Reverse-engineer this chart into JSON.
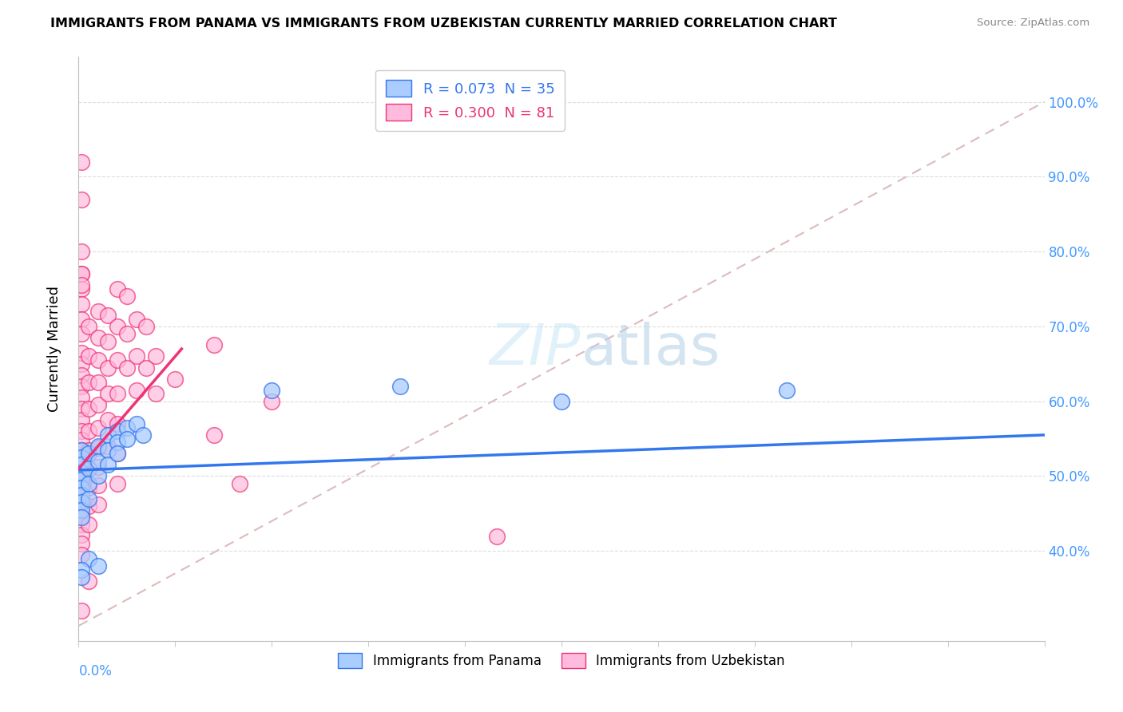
{
  "title": "IMMIGRANTS FROM PANAMA VS IMMIGRANTS FROM UZBEKISTAN CURRENTLY MARRIED CORRELATION CHART",
  "source": "Source: ZipAtlas.com",
  "ylabel": "Currently Married",
  "legend_panama": "R = 0.073  N = 35",
  "legend_uzbekistan": "R = 0.300  N = 81",
  "color_panama": "#aaccff",
  "color_uzbekistan": "#ffbbdd",
  "line_color_panama": "#3377ee",
  "line_color_uzbekistan": "#ee3377",
  "diagonal_color": "#ddbbbb",
  "xmin": 0.0,
  "xmax": 0.3,
  "ymin": 0.28,
  "ymax": 1.06,
  "yticks": [
    0.4,
    0.5,
    0.6,
    0.7,
    0.8,
    0.9,
    1.0
  ],
  "panama_points": [
    [
      0.001,
      0.535
    ],
    [
      0.001,
      0.525
    ],
    [
      0.001,
      0.515
    ],
    [
      0.001,
      0.505
    ],
    [
      0.001,
      0.495
    ],
    [
      0.001,
      0.485
    ],
    [
      0.001,
      0.475
    ],
    [
      0.001,
      0.465
    ],
    [
      0.001,
      0.455
    ],
    [
      0.001,
      0.445
    ],
    [
      0.003,
      0.53
    ],
    [
      0.003,
      0.51
    ],
    [
      0.003,
      0.49
    ],
    [
      0.003,
      0.47
    ],
    [
      0.006,
      0.54
    ],
    [
      0.006,
      0.52
    ],
    [
      0.006,
      0.5
    ],
    [
      0.009,
      0.555
    ],
    [
      0.009,
      0.535
    ],
    [
      0.009,
      0.515
    ],
    [
      0.012,
      0.56
    ],
    [
      0.012,
      0.545
    ],
    [
      0.012,
      0.53
    ],
    [
      0.015,
      0.565
    ],
    [
      0.015,
      0.55
    ],
    [
      0.018,
      0.57
    ],
    [
      0.02,
      0.555
    ],
    [
      0.06,
      0.615
    ],
    [
      0.1,
      0.62
    ],
    [
      0.22,
      0.615
    ],
    [
      0.003,
      0.39
    ],
    [
      0.006,
      0.38
    ],
    [
      0.001,
      0.375
    ],
    [
      0.001,
      0.365
    ],
    [
      0.15,
      0.6
    ]
  ],
  "uzbekistan_points": [
    [
      0.001,
      0.92
    ],
    [
      0.001,
      0.87
    ],
    [
      0.001,
      0.8
    ],
    [
      0.001,
      0.77
    ],
    [
      0.001,
      0.75
    ],
    [
      0.001,
      0.73
    ],
    [
      0.001,
      0.71
    ],
    [
      0.001,
      0.69
    ],
    [
      0.001,
      0.665
    ],
    [
      0.001,
      0.65
    ],
    [
      0.001,
      0.635
    ],
    [
      0.001,
      0.62
    ],
    [
      0.001,
      0.605
    ],
    [
      0.001,
      0.59
    ],
    [
      0.001,
      0.575
    ],
    [
      0.001,
      0.56
    ],
    [
      0.001,
      0.548
    ],
    [
      0.001,
      0.535
    ],
    [
      0.001,
      0.522
    ],
    [
      0.001,
      0.51
    ],
    [
      0.001,
      0.498
    ],
    [
      0.001,
      0.485
    ],
    [
      0.001,
      0.472
    ],
    [
      0.001,
      0.46
    ],
    [
      0.001,
      0.448
    ],
    [
      0.001,
      0.435
    ],
    [
      0.001,
      0.422
    ],
    [
      0.001,
      0.41
    ],
    [
      0.001,
      0.395
    ],
    [
      0.003,
      0.7
    ],
    [
      0.003,
      0.66
    ],
    [
      0.003,
      0.625
    ],
    [
      0.003,
      0.59
    ],
    [
      0.003,
      0.56
    ],
    [
      0.003,
      0.535
    ],
    [
      0.003,
      0.51
    ],
    [
      0.003,
      0.485
    ],
    [
      0.003,
      0.46
    ],
    [
      0.003,
      0.435
    ],
    [
      0.006,
      0.72
    ],
    [
      0.006,
      0.685
    ],
    [
      0.006,
      0.655
    ],
    [
      0.006,
      0.625
    ],
    [
      0.006,
      0.595
    ],
    [
      0.006,
      0.565
    ],
    [
      0.006,
      0.538
    ],
    [
      0.006,
      0.512
    ],
    [
      0.006,
      0.488
    ],
    [
      0.006,
      0.462
    ],
    [
      0.009,
      0.715
    ],
    [
      0.009,
      0.68
    ],
    [
      0.009,
      0.645
    ],
    [
      0.009,
      0.61
    ],
    [
      0.009,
      0.575
    ],
    [
      0.009,
      0.54
    ],
    [
      0.012,
      0.75
    ],
    [
      0.012,
      0.7
    ],
    [
      0.012,
      0.655
    ],
    [
      0.012,
      0.61
    ],
    [
      0.012,
      0.57
    ],
    [
      0.012,
      0.53
    ],
    [
      0.012,
      0.49
    ],
    [
      0.015,
      0.74
    ],
    [
      0.015,
      0.69
    ],
    [
      0.015,
      0.645
    ],
    [
      0.018,
      0.71
    ],
    [
      0.018,
      0.66
    ],
    [
      0.018,
      0.615
    ],
    [
      0.021,
      0.7
    ],
    [
      0.021,
      0.645
    ],
    [
      0.024,
      0.66
    ],
    [
      0.024,
      0.61
    ],
    [
      0.03,
      0.63
    ],
    [
      0.042,
      0.675
    ],
    [
      0.042,
      0.555
    ],
    [
      0.06,
      0.6
    ],
    [
      0.003,
      0.36
    ],
    [
      0.001,
      0.32
    ],
    [
      0.13,
      0.42
    ],
    [
      0.05,
      0.49
    ],
    [
      0.001,
      0.77
    ],
    [
      0.001,
      0.755
    ]
  ],
  "panama_line": [
    0.0,
    0.3,
    0.508,
    0.555
  ],
  "uzbekistan_line": [
    0.0,
    0.032,
    0.51,
    0.67
  ]
}
